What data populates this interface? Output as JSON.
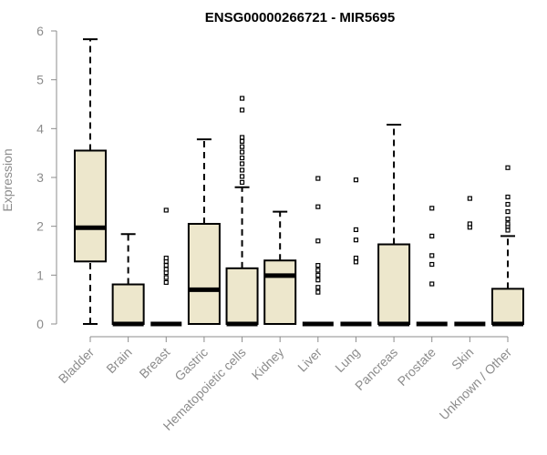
{
  "chart_data": {
    "type": "boxplot",
    "title": "ENSG00000266721 - MIR5695",
    "xlabel": "",
    "ylabel": "Expression",
    "ylim": [
      0,
      6
    ],
    "yticks": [
      "0",
      "1",
      "2",
      "3",
      "4",
      "5",
      "6"
    ],
    "grid": false,
    "colors": {
      "box_fill": "#ede7cc",
      "stroke": "#000000",
      "axis": "#8c8c8c",
      "title": "#000000"
    },
    "categories": [
      "Bladder",
      "Brain",
      "Breast",
      "Gastric",
      "Hematopoietic cells",
      "Kidney",
      "Liver",
      "Lung",
      "Pancreas",
      "Prostate",
      "Skin",
      "Unknown / Other"
    ],
    "boxes": [
      {
        "category": "Bladder",
        "min": 0.0,
        "q1": 1.28,
        "median": 1.97,
        "q3": 3.55,
        "max": 5.83,
        "outliers": []
      },
      {
        "category": "Brain",
        "min": 0.0,
        "q1": 0.0,
        "median": 0.0,
        "q3": 0.81,
        "max": 1.84,
        "outliers": []
      },
      {
        "category": "Breast",
        "min": 0.0,
        "q1": 0.0,
        "median": 0.0,
        "q3": 0.0,
        "max": 0.0,
        "outliers": [
          0.85,
          0.95,
          1.05,
          1.12,
          1.2,
          1.28,
          1.35,
          2.33
        ]
      },
      {
        "category": "Gastric",
        "min": 0.0,
        "q1": 0.0,
        "median": 0.7,
        "q3": 2.05,
        "max": 3.78,
        "outliers": []
      },
      {
        "category": "Hematopoietic cells",
        "min": 0.0,
        "q1": 0.0,
        "median": 0.0,
        "q3": 1.14,
        "max": 2.8,
        "outliers": [
          2.9,
          3.02,
          3.15,
          3.28,
          3.4,
          3.52,
          3.63,
          3.74,
          3.82,
          4.38,
          4.62
        ]
      },
      {
        "category": "Kidney",
        "min": 0.0,
        "q1": 0.0,
        "median": 0.99,
        "q3": 1.3,
        "max": 2.3,
        "outliers": []
      },
      {
        "category": "Liver",
        "min": 0.0,
        "q1": 0.0,
        "median": 0.0,
        "q3": 0.0,
        "max": 0.0,
        "outliers": [
          0.65,
          0.75,
          0.9,
          1.0,
          1.1,
          1.2,
          1.7,
          2.4,
          2.98
        ]
      },
      {
        "category": "Lung",
        "min": 0.0,
        "q1": 0.0,
        "median": 0.0,
        "q3": 0.0,
        "max": 0.0,
        "outliers": [
          1.27,
          1.35,
          1.72,
          1.93,
          2.95
        ]
      },
      {
        "category": "Pancreas",
        "min": 0.0,
        "q1": 0.0,
        "median": 0.0,
        "q3": 1.63,
        "max": 4.08,
        "outliers": []
      },
      {
        "category": "Prostate",
        "min": 0.0,
        "q1": 0.0,
        "median": 0.0,
        "q3": 0.0,
        "max": 0.0,
        "outliers": [
          0.82,
          1.22,
          1.4,
          1.8,
          2.37
        ]
      },
      {
        "category": "Skin",
        "min": 0.0,
        "q1": 0.0,
        "median": 0.0,
        "q3": 0.0,
        "max": 0.0,
        "outliers": [
          1.98,
          2.05,
          2.57
        ]
      },
      {
        "category": "Unknown / Other",
        "min": 0.0,
        "q1": 0.0,
        "median": 0.0,
        "q3": 0.72,
        "max": 1.8,
        "outliers": [
          1.92,
          2.0,
          2.05,
          2.15,
          2.3,
          2.45,
          2.6,
          3.2
        ]
      }
    ]
  }
}
